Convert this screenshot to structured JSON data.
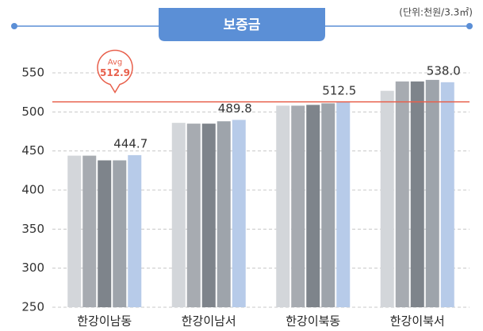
{
  "chart_data": {
    "type": "bar",
    "title": "보증금",
    "unit": "(단위:천원/3.3㎡)",
    "categories": [
      "한강이남동",
      "한강이남서",
      "한강이북동",
      "한강이북서"
    ],
    "series": [
      {
        "color": "#d3d6da",
        "values": [
          444,
          486,
          508,
          527
        ]
      },
      {
        "color": "#a7abb1",
        "values": [
          444,
          485,
          508,
          539
        ]
      },
      {
        "color": "#7e848b",
        "values": [
          438,
          485,
          509,
          539
        ]
      },
      {
        "color": "#9ea4ab",
        "values": [
          438,
          488,
          511,
          541
        ]
      },
      {
        "color": "#b7cbe9",
        "values": [
          444.7,
          489.8,
          512.5,
          538.0
        ],
        "value_labels": [
          null,
          null,
          null,
          null
        ]
      }
    ],
    "labels": [
      {
        "value": 444.7,
        "label": "444.7"
      },
      {
        "value": 489.8,
        "label": "489.8"
      },
      {
        "value": 512.5,
        "label": "512.5"
      },
      {
        "value": 538.0,
        "label": "538.0"
      }
    ],
    "average": {
      "name": "Avg",
      "value": 512.9,
      "label": "512.9",
      "color": "#e8604c"
    },
    "ylim": [
      250,
      550
    ],
    "yticks": [
      250,
      300,
      350,
      400,
      450,
      500,
      550
    ],
    "grid": true
  }
}
